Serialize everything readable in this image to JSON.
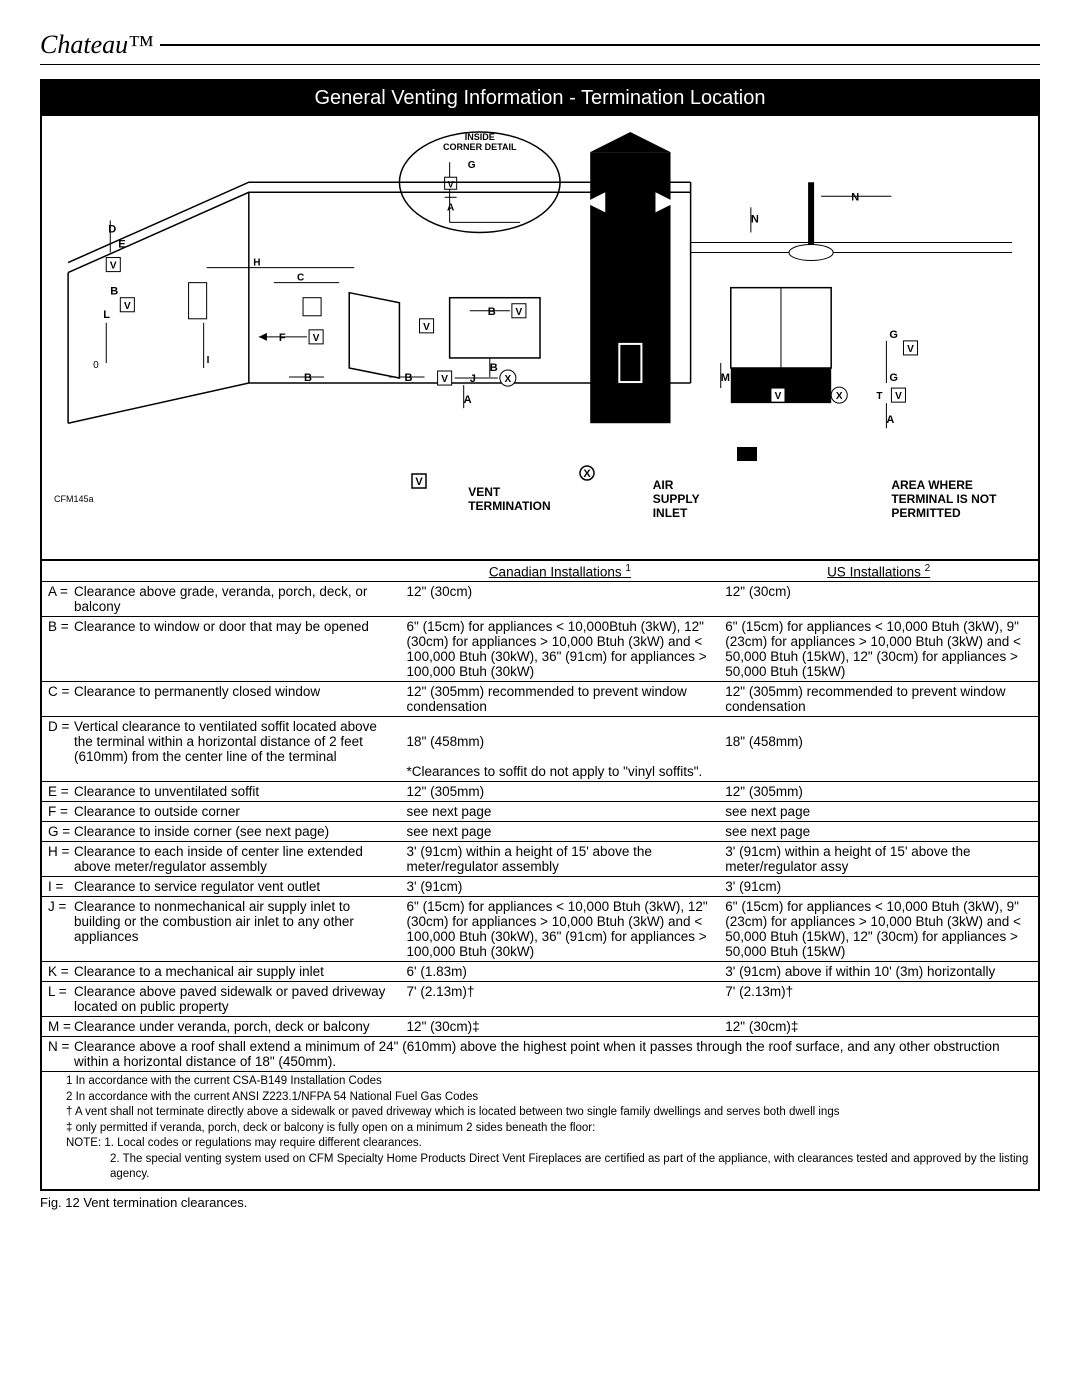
{
  "brand": "Chateau™",
  "title": "General Venting Information - Termination Location",
  "diagram_code": "CFM145a",
  "inside_corner_label": "INSIDE\nCORNER DETAIL",
  "legend": {
    "vent": "VENT TERMINATION",
    "air": "AIR SUPPLY INLET",
    "area": "AREA WHERE TERMINAL IS NOT PERMITTED"
  },
  "headers": {
    "ca": "Canadian Installations",
    "us": "US Installations"
  },
  "rows": [
    {
      "letter": "A =",
      "label": "Clearance above grade, veranda, porch, deck, or balcony",
      "ca": "12\" (30cm)",
      "us": "12\" (30cm)"
    },
    {
      "letter": "B =",
      "label": "Clearance to window or door that may be opened",
      "ca": "6\" (15cm) for appliances < 10,000Btuh (3kW), 12\" (30cm) for appliances > 10,000 Btuh (3kW) and < 100,000 Btuh (30kW), 36\" (91cm) for appliances > 100,000 Btuh (30kW)",
      "us": "6\" (15cm) for appliances < 10,000 Btuh (3kW), 9\" (23cm) for appliances > 10,000 Btuh (3kW) and < 50,000 Btuh (15kW), 12\" (30cm) for appliances > 50,000 Btuh (15kW)"
    },
    {
      "letter": "C =",
      "label": "Clearance to permanently closed window",
      "ca": "12\" (305mm) recommended to prevent window condensation",
      "us": "12\" (305mm) recommended to prevent window condensation"
    },
    {
      "letter": "D =",
      "label": "Vertical clearance to ventilated soffit located above the terminal within a horizontal distance of 2 feet (610mm) from the center line of the terminal",
      "ca": "\n18\" (458mm)\n\n   *Clearances to soffit do not apply to \"vinyl soffits\".",
      "us": "\n18\" (458mm)"
    },
    {
      "letter": "E =",
      "label": "Clearance to unventilated soffit",
      "ca": "12\" (305mm)",
      "us": "12\" (305mm)"
    },
    {
      "letter": "F =",
      "label": "Clearance to outside corner",
      "ca": "see next page",
      "us": "see next page"
    },
    {
      "letter": "G =",
      "label": "Clearance to inside corner (see next page)",
      "ca": "see next page",
      "us": "see next page"
    },
    {
      "letter": "H =",
      "label": "Clearance to each inside of center line extended above meter/regulator assembly",
      "ca": "3' (91cm) within a height of 15' above the meter/regulator assembly",
      "us": "3' (91cm) within a height of 15' above the meter/regulator assy"
    },
    {
      "letter": "I  =",
      "label": "Clearance to service regulator vent outlet",
      "ca": "3' (91cm)",
      "us": "3' (91cm)"
    },
    {
      "letter": "J =",
      "label": "Clearance to nonmechanical air supply inlet to building or the combustion air inlet to any other appliances",
      "ca": "6\" (15cm) for appliances < 10,000 Btuh (3kW), 12\" (30cm) for appliances > 10,000 Btuh (3kW) and < 100,000 Btuh (30kW), 36\" (91cm) for appliances > 100,000 Btuh (30kW)",
      "us": "6\" (15cm) for appliances < 10,000 Btuh (3kW), 9\" (23cm) for appliances > 10,000 Btuh (3kW) and < 50,000 Btuh (15kW), 12\" (30cm) for appliances > 50,000 Btuh (15kW)"
    },
    {
      "letter": "K =",
      "label": "Clearance to a mechanical air supply inlet",
      "ca": "6' (1.83m)",
      "us": "3' (91cm) above if within 10' (3m) horizontally"
    },
    {
      "letter": "L =",
      "label": "Clearance  above paved sidewalk or paved driveway located on public property",
      "ca": "7' (2.13m)†",
      "us": "7' (2.13m)†"
    },
    {
      "letter": "M =",
      "label": "Clearance under veranda, porch, deck or balcony",
      "ca": "12\" (30cm)‡",
      "us": "12\" (30cm)‡"
    }
  ],
  "row_n": "N =  Clearance above a roof shall extend a minimum of 24\" (610mm) above the highest point when it passes through the roof surface, and any other obstruction within a horizontal distance of 18\" (450mm).",
  "notes": [
    "1 In accordance with the current CSA-B149 Installation Codes",
    "2 In accordance with the current ANSI Z223.1/NFPA 54 National Fuel Gas Codes",
    "† A vent shall not terminate directly above a sidewalk or paved driveway which is located between two single family dwellings and serves both dwell ings",
    "‡ only permitted if veranda, porch, deck or balcony is fully open on a minimum 2 sides beneath the floor:",
    "NOTE:  1. Local codes or regulations may require different clearances."
  ],
  "note_indent": "2. The special venting system used on CFM Specialty Home Products Direct Vent Fireplaces are certified as part of the appliance, with clearances tested and approved by the listing agency.",
  "caption": "Fig. 12  Vent termination clearances.",
  "colors": {
    "black": "#000000",
    "white": "#ffffff"
  }
}
